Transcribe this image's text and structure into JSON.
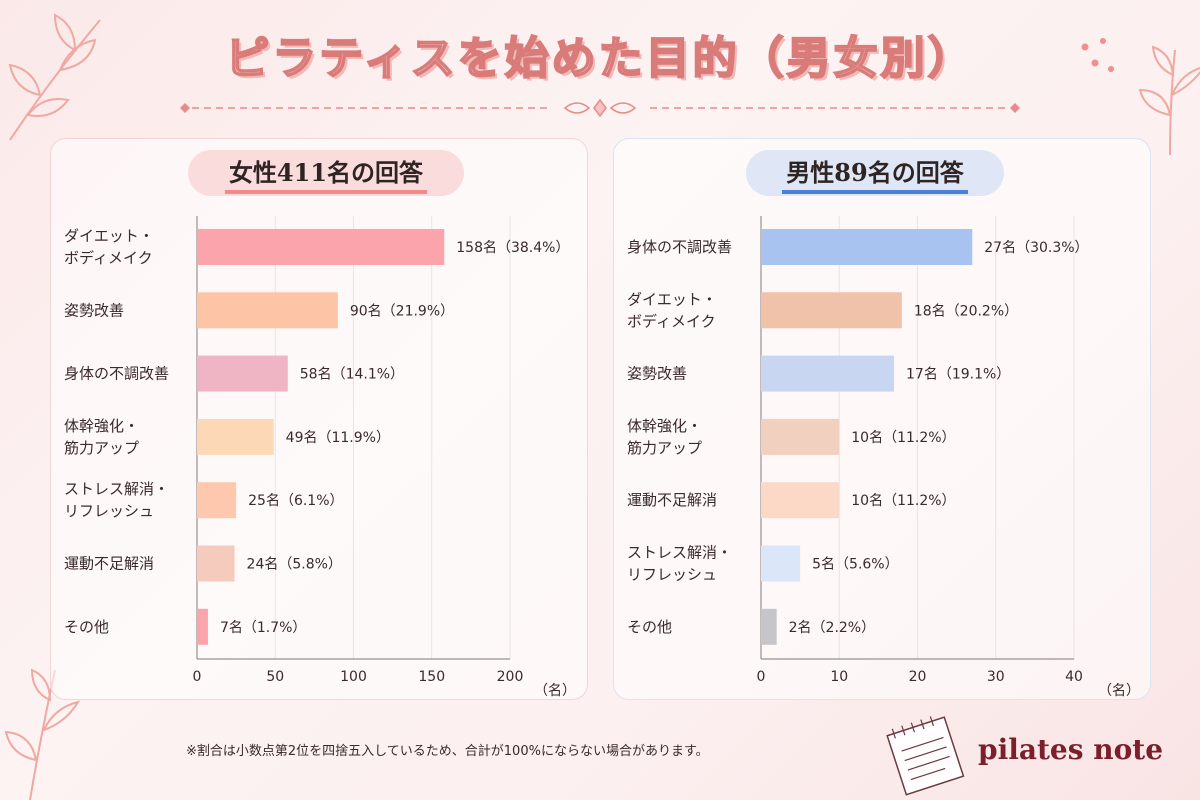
{
  "title": "ピラティスを始めた目的（男女別）",
  "note": "※割合は小数点第2位を四捨五入しているため、合計が100%にならない場合があります。",
  "brand": "pilates note",
  "chart_data": [
    {
      "type": "bar",
      "orientation": "horizontal",
      "title": "女性411名の回答",
      "categories": [
        [
          "ダイエット・",
          "ボディメイク"
        ],
        [
          "姿勢改善"
        ],
        [
          "身体の不調改善"
        ],
        [
          "体幹強化・",
          "筋力アップ"
        ],
        [
          "ストレス解消・",
          "リフレッシュ"
        ],
        [
          "運動不足解消"
        ],
        [
          "その他"
        ]
      ],
      "values": [
        158,
        90,
        58,
        49,
        25,
        24,
        7
      ],
      "labels": [
        "158名（38.4%）",
        "90名（21.9%）",
        "58名（14.1%）",
        "49名（11.9%）",
        "25名（6.1%）",
        "24名（5.8%）",
        "7名（1.7%）"
      ],
      "colors": [
        "#fba4ab",
        "#fdc4a5",
        "#f0b5c5",
        "#fdd8b7",
        "#fdc8ae",
        "#f4cbbc",
        "#fba4ab"
      ],
      "xlim": [
        0,
        200
      ],
      "ticks": [
        0,
        50,
        100,
        150,
        200
      ],
      "unit": "（名）",
      "grid": true
    },
    {
      "type": "bar",
      "orientation": "horizontal",
      "title": "男性89名の回答",
      "categories": [
        [
          "身体の不調改善"
        ],
        [
          "ダイエット・",
          "ボディメイク"
        ],
        [
          "姿勢改善"
        ],
        [
          "体幹強化・",
          "筋力アップ"
        ],
        [
          "運動不足解消"
        ],
        [
          "ストレス解消・",
          "リフレッシュ"
        ],
        [
          "その他"
        ]
      ],
      "values": [
        27,
        18,
        17,
        10,
        10,
        5,
        2
      ],
      "labels": [
        "27名（30.3%）",
        "18名（20.2%）",
        "17名（19.1%）",
        "10名（11.2%）",
        "10名（11.2%）",
        "5名（5.6%）",
        "2名（2.2%）"
      ],
      "colors": [
        "#a8c3f0",
        "#f1c2aa",
        "#c8d6f2",
        "#f2d0c0",
        "#fbd9c6",
        "#dbe6f8",
        "#c7c5ca"
      ],
      "xlim": [
        0,
        40
      ],
      "ticks": [
        0,
        10,
        20,
        30,
        40
      ],
      "unit": "（名）",
      "grid": true
    }
  ]
}
